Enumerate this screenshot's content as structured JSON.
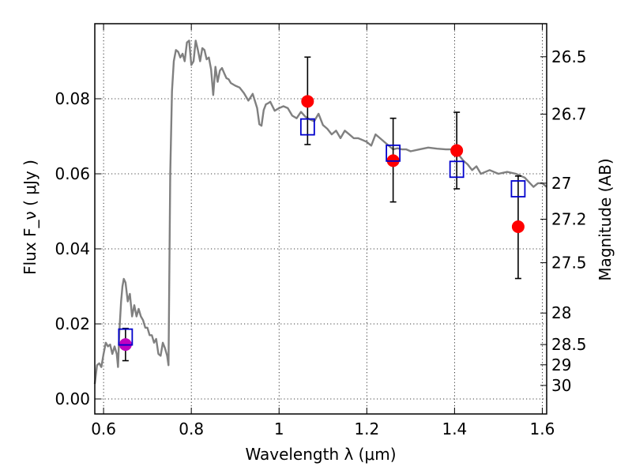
{
  "chart_data": {
    "type": "scatter",
    "xlabel": "Wavelength  λ (μm)",
    "ylabel": "Flux  F_ν  ( μJy )",
    "ylabel_right": "Magnitude (AB)",
    "xlim": [
      0.58,
      1.61
    ],
    "ylim": [
      -0.004,
      0.1
    ],
    "grid": true,
    "x_ticks": [
      0.6,
      0.8,
      1.0,
      1.2,
      1.4,
      1.6
    ],
    "x_tick_labels": [
      "0.6",
      "0.8",
      "1",
      "1.2",
      "1.4",
      "1.6"
    ],
    "y_ticks": [
      0.0,
      0.02,
      0.04,
      0.06,
      0.08
    ],
    "y_tick_labels": [
      "0.00",
      "0.02",
      "0.04",
      "0.06",
      "0.08"
    ],
    "right_ticks": [
      {
        "label": "26.5",
        "flux": 0.0912
      },
      {
        "label": "26.7",
        "flux": 0.0759
      },
      {
        "label": "27",
        "flux": 0.0575
      },
      {
        "label": "27.2",
        "flux": 0.0479
      },
      {
        "label": "27.5",
        "flux": 0.0363
      },
      {
        "label": "28",
        "flux": 0.0229
      },
      {
        "label": "28.5",
        "flux": 0.0145
      },
      {
        "label": "29",
        "flux": 0.0091
      },
      {
        "label": "30",
        "flux": 0.0036
      }
    ],
    "series": [
      {
        "name": "model-spectrum",
        "kind": "line",
        "color": "#808080",
        "x": [
          0.58,
          0.585,
          0.59,
          0.595,
          0.6,
          0.605,
          0.61,
          0.615,
          0.62,
          0.625,
          0.63,
          0.633,
          0.636,
          0.64,
          0.643,
          0.646,
          0.65,
          0.655,
          0.66,
          0.665,
          0.67,
          0.675,
          0.68,
          0.685,
          0.69,
          0.695,
          0.7,
          0.705,
          0.71,
          0.715,
          0.72,
          0.725,
          0.73,
          0.735,
          0.74,
          0.745,
          0.748,
          0.752,
          0.756,
          0.76,
          0.765,
          0.77,
          0.775,
          0.78,
          0.785,
          0.79,
          0.795,
          0.8,
          0.805,
          0.81,
          0.815,
          0.82,
          0.825,
          0.83,
          0.835,
          0.84,
          0.845,
          0.85,
          0.855,
          0.86,
          0.865,
          0.87,
          0.875,
          0.88,
          0.885,
          0.89,
          0.9,
          0.91,
          0.92,
          0.93,
          0.94,
          0.95,
          0.955,
          0.96,
          0.965,
          0.97,
          0.975,
          0.98,
          0.99,
          1.0,
          1.01,
          1.02,
          1.03,
          1.04,
          1.05,
          1.06,
          1.07,
          1.08,
          1.09,
          1.1,
          1.11,
          1.12,
          1.13,
          1.14,
          1.15,
          1.16,
          1.17,
          1.18,
          1.19,
          1.2,
          1.21,
          1.22,
          1.23,
          1.24,
          1.25,
          1.26,
          1.27,
          1.28,
          1.29,
          1.3,
          1.32,
          1.34,
          1.36,
          1.38,
          1.4,
          1.41,
          1.42,
          1.43,
          1.44,
          1.45,
          1.46,
          1.48,
          1.5,
          1.52,
          1.54,
          1.56,
          1.58,
          1.59,
          1.6,
          1.61
        ],
        "y": [
          0.004,
          0.009,
          0.0095,
          0.0085,
          0.012,
          0.015,
          0.014,
          0.0145,
          0.012,
          0.014,
          0.012,
          0.0085,
          0.018,
          0.026,
          0.03,
          0.032,
          0.031,
          0.026,
          0.028,
          0.022,
          0.025,
          0.022,
          0.024,
          0.022,
          0.021,
          0.019,
          0.019,
          0.017,
          0.017,
          0.015,
          0.016,
          0.012,
          0.0115,
          0.015,
          0.0135,
          0.0115,
          0.009,
          0.06,
          0.082,
          0.09,
          0.093,
          0.0925,
          0.091,
          0.092,
          0.09,
          0.095,
          0.0955,
          0.089,
          0.09,
          0.0955,
          0.093,
          0.09,
          0.0935,
          0.093,
          0.0905,
          0.091,
          0.0878,
          0.081,
          0.0885,
          0.0845,
          0.0875,
          0.0882,
          0.0868,
          0.0855,
          0.0852,
          0.0842,
          0.0835,
          0.083,
          0.0815,
          0.0795,
          0.0813,
          0.0775,
          0.0732,
          0.0728,
          0.077,
          0.0785,
          0.0788,
          0.0792,
          0.0768,
          0.0775,
          0.078,
          0.0775,
          0.0755,
          0.0748,
          0.0765,
          0.0752,
          0.0745,
          0.074,
          0.076,
          0.073,
          0.072,
          0.0705,
          0.0715,
          0.0695,
          0.0715,
          0.0705,
          0.0695,
          0.0695,
          0.069,
          0.0685,
          0.0675,
          0.0705,
          0.0695,
          0.0685,
          0.0675,
          0.0665,
          0.0668,
          0.0665,
          0.0665,
          0.066,
          0.0665,
          0.067,
          0.0667,
          0.0665,
          0.0665,
          0.065,
          0.0635,
          0.0625,
          0.061,
          0.062,
          0.06,
          0.061,
          0.06,
          0.0605,
          0.06,
          0.059,
          0.0565,
          0.0575,
          0.0575,
          0.0565
        ]
      },
      {
        "name": "observed-photometry",
        "kind": "points",
        "marker": "circle",
        "color": "#ff0000",
        "x": [
          1.065,
          1.26,
          1.405,
          1.545
        ],
        "y": [
          0.0793,
          0.0635,
          0.0662,
          0.0459
        ],
        "y_err_low": [
          0.0115,
          0.011,
          0.0102,
          0.0138
        ],
        "y_err_high": [
          0.0118,
          0.0113,
          0.0102,
          0.0135
        ]
      },
      {
        "name": "optical-photometry",
        "kind": "points",
        "marker": "circle",
        "color": "#c000c0",
        "x": [
          0.65
        ],
        "y": [
          0.0145
        ],
        "y_err_low": [
          0.0043
        ],
        "y_err_high": [
          0.0043
        ]
      },
      {
        "name": "model-photometry",
        "kind": "points",
        "marker": "open-square",
        "color": "#0000cc",
        "x": [
          0.65,
          1.065,
          1.26,
          1.405,
          1.545
        ],
        "y": [
          0.0165,
          0.0725,
          0.0655,
          0.0612,
          0.056
        ]
      }
    ]
  }
}
